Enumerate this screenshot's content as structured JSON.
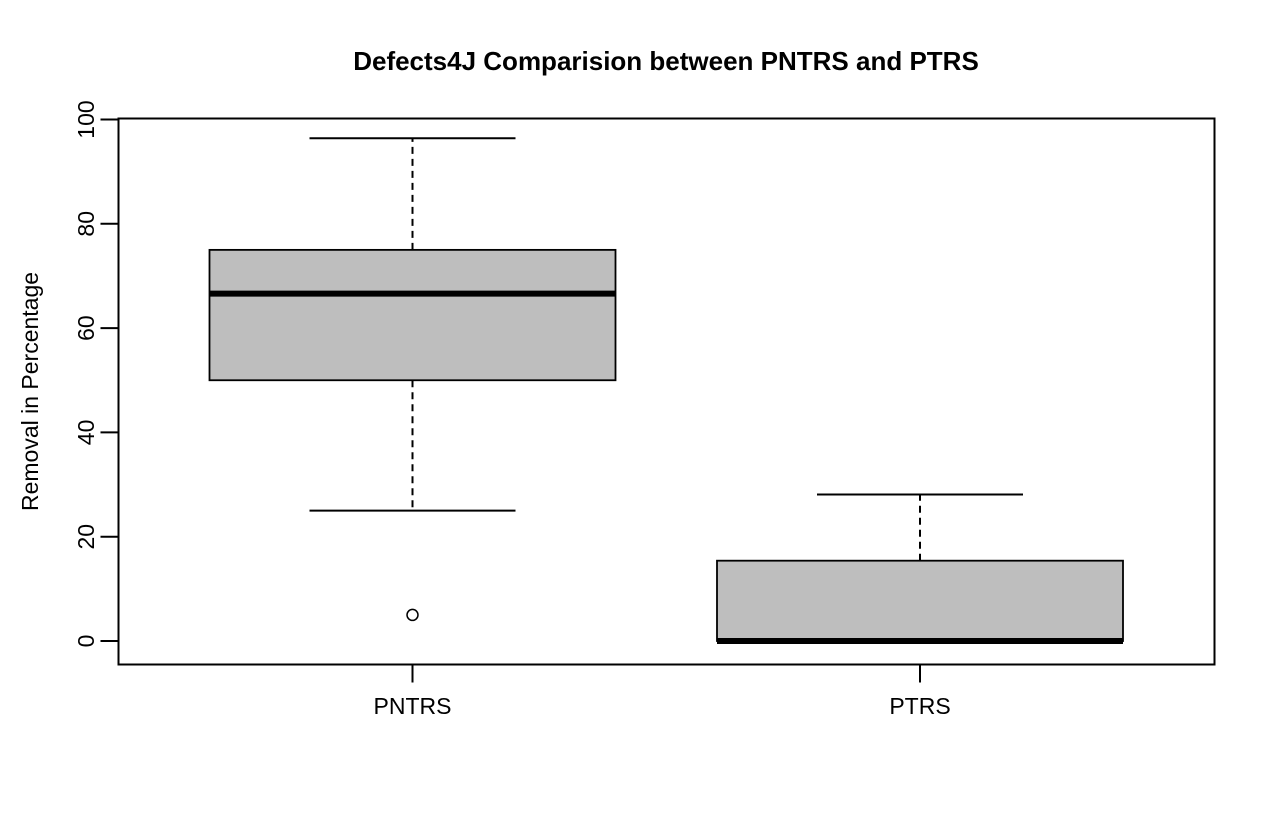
{
  "title": "Defects4J Comparision between PNTRS and PTRS",
  "y_axis": {
    "label": "Removal in Percentage",
    "tick_labels": [
      "0",
      "20",
      "40",
      "60",
      "80",
      "100"
    ]
  },
  "x_axis": {
    "tick_labels": [
      "PNTRS",
      "PTRS"
    ]
  },
  "colors": {
    "box_fill": "#BEBEBE",
    "stroke": "#000000",
    "background": "#FFFFFF",
    "text": "#000000"
  },
  "chart_data": {
    "type": "boxplot",
    "title": "Defects4J Comparision between PNTRS and PTRS",
    "xlabel": "",
    "ylabel": "Removal in Percentage",
    "ylim": [
      0,
      100
    ],
    "yticks": [
      0,
      20,
      40,
      60,
      80,
      100
    ],
    "categories": [
      "PNTRS",
      "PTRS"
    ],
    "grid": false,
    "legend_position": "none",
    "series": [
      {
        "name": "PNTRS",
        "whisker_low": 25,
        "q1": 50,
        "median": 66.6,
        "q3": 75,
        "whisker_high": 96.4,
        "outliers": [
          5
        ]
      },
      {
        "name": "PTRS",
        "whisker_low": 0,
        "q1": 0,
        "median": 0,
        "q3": 15.4,
        "whisker_high": 28.1,
        "outliers": []
      }
    ]
  }
}
